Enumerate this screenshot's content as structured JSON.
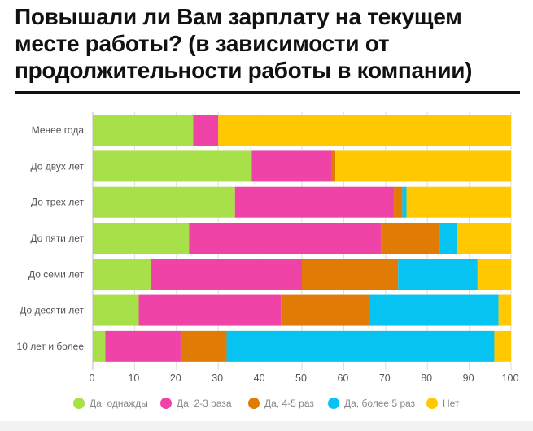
{
  "chart_data": {
    "type": "bar",
    "orientation": "horizontal",
    "stacked": true,
    "title": "Повышали ли Вам зарплату на текущем месте работы? (в зависимости от продолжительности работы в компании)",
    "categories": [
      "Менее года",
      "До двух лет",
      "До трех лет",
      "До пяти лет",
      "До семи лет",
      "До десяти лет",
      "10 лет и более"
    ],
    "series": [
      {
        "name": "Да, однажды",
        "color": "#a8e04a",
        "values": [
          24,
          38,
          34,
          23,
          14,
          11,
          3
        ]
      },
      {
        "name": "Да, 2-3 раза",
        "color": "#f043a8",
        "values": [
          6,
          19,
          38,
          46,
          36,
          34,
          18
        ]
      },
      {
        "name": "Да, 4-5 раз",
        "color": "#e07b05",
        "values": [
          0,
          1,
          2,
          14,
          23,
          21,
          11
        ]
      },
      {
        "name": "Да, более 5 раз",
        "color": "#07c3f2",
        "values": [
          0,
          0,
          1,
          4,
          19,
          31,
          64
        ]
      },
      {
        "name": "Нет",
        "color": "#ffc800",
        "values": [
          70,
          42,
          25,
          13,
          8,
          3,
          4
        ]
      }
    ],
    "xlim": [
      0,
      100
    ],
    "xticks": [
      0,
      10,
      20,
      30,
      40,
      50,
      60,
      70,
      80,
      90,
      100
    ],
    "grid": true,
    "legend": "bottom"
  }
}
